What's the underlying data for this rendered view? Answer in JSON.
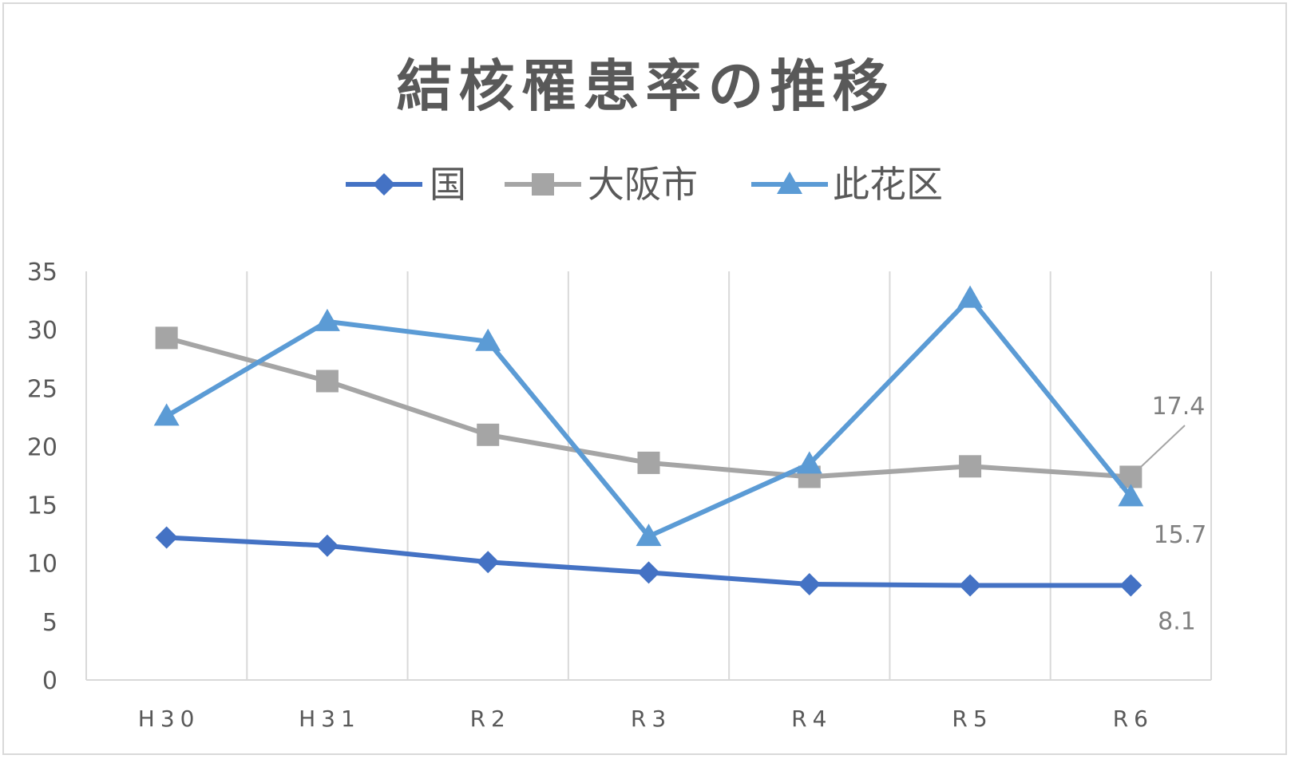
{
  "chart_data": {
    "type": "line",
    "title": "結核罹患率の推移",
    "categories": [
      "H30",
      "H31",
      "R2",
      "R3",
      "R4",
      "R5",
      "R6"
    ],
    "ylim": [
      0,
      35
    ],
    "yticks": [
      0,
      5,
      10,
      15,
      20,
      25,
      30,
      35
    ],
    "grid": "vertical",
    "legend_position": "top",
    "series": [
      {
        "name": "国",
        "color": "#4472c4",
        "marker": "diamond",
        "values": [
          12.2,
          11.5,
          10.1,
          9.2,
          8.2,
          8.1,
          8.1
        ],
        "end_label": "8.1"
      },
      {
        "name": "大阪市",
        "color": "#a5a5a5",
        "marker": "square",
        "values": [
          29.3,
          25.6,
          21.0,
          18.6,
          17.4,
          18.3,
          17.4
        ],
        "end_label": "17.4"
      },
      {
        "name": "此花区",
        "color": "#5b9bd5",
        "marker": "triangle",
        "values": [
          22.6,
          30.7,
          29.0,
          12.3,
          18.5,
          32.7,
          15.7
        ],
        "end_label": "15.7"
      }
    ]
  }
}
